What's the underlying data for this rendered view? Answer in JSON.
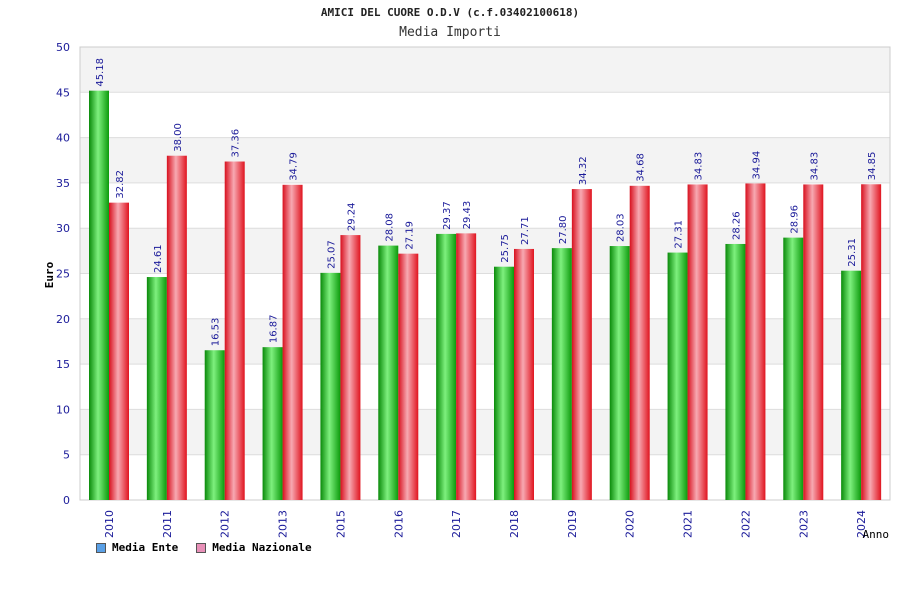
{
  "chart_data": {
    "type": "bar",
    "title": "AMICI DEL CUORE O.D.V (c.f.03402100618)",
    "subtitle": "Media Importi",
    "xlabel": "Anno",
    "ylabel": "Euro",
    "ylim": [
      0,
      50
    ],
    "yticks": [
      0,
      5,
      10,
      15,
      20,
      25,
      30,
      35,
      40,
      45,
      50
    ],
    "grid": "horizontal bands",
    "legend_position": "bottom-left",
    "categories": [
      "2010",
      "2011",
      "2012",
      "2013",
      "2015",
      "2016",
      "2017",
      "2018",
      "2019",
      "2020",
      "2021",
      "2022",
      "2023",
      "2024"
    ],
    "series": [
      {
        "name": "Media Ente",
        "legend_color": "#5aa0e6",
        "bar_color": "#1fbf1f",
        "values": [
          45.18,
          24.61,
          16.53,
          16.87,
          25.07,
          28.08,
          29.37,
          25.75,
          27.8,
          28.03,
          27.31,
          28.26,
          28.96,
          25.31
        ],
        "labels": [
          "45.18",
          "24.61",
          "16.53",
          "16.87",
          "25.07",
          "28.08",
          "29.37",
          "25.75",
          "27.80",
          "28.03",
          "27.31",
          "28.26",
          "28.96",
          "25.31"
        ]
      },
      {
        "name": "Media Nazionale",
        "legend_color": "#e890b8",
        "bar_color": "#e8202e",
        "values": [
          32.82,
          38.0,
          37.36,
          34.79,
          29.24,
          27.19,
          29.43,
          27.71,
          34.32,
          34.68,
          34.83,
          34.94,
          34.83,
          34.85
        ],
        "labels": [
          "32.82",
          "38.00",
          "37.36",
          "34.79",
          "29.24",
          "27.19",
          "29.43",
          "27.71",
          "34.32",
          "34.68",
          "34.83",
          "34.94",
          "34.83",
          "34.85"
        ]
      }
    ]
  }
}
